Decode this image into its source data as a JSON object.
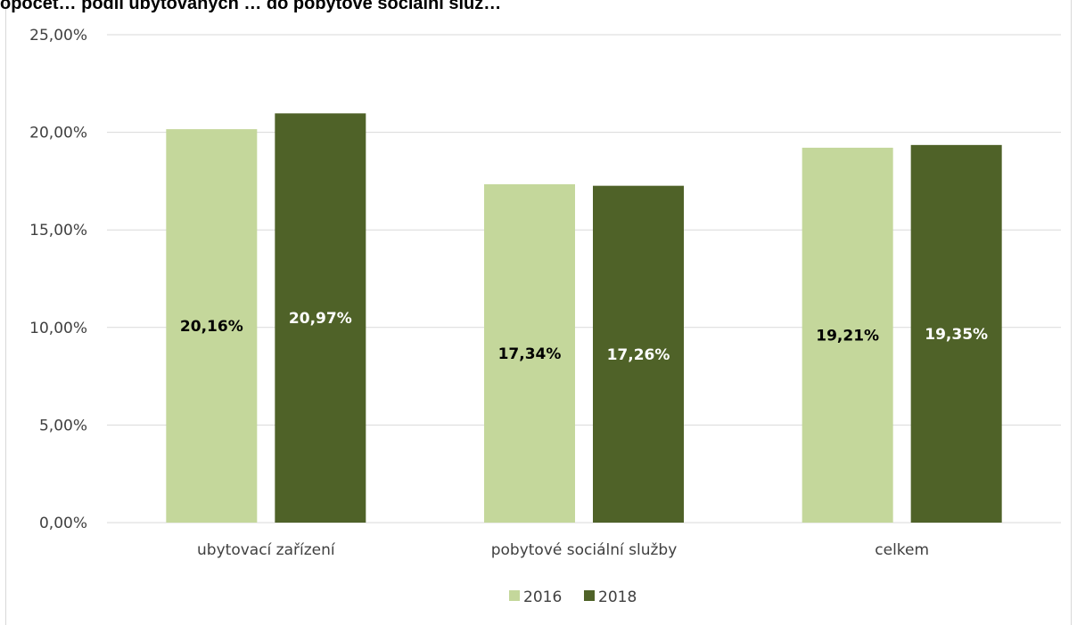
{
  "chart_data": {
    "type": "bar",
    "title": "opočet… podíl ubytovaných … do pobytové sociální služ…",
    "categories": [
      "ubytovací zařízení",
      "pobytové sociální služby",
      "celkem"
    ],
    "series": [
      {
        "name": "2016",
        "values": [
          20.16,
          17.34,
          19.21
        ],
        "labels": [
          "20,16%",
          "17,34%",
          "19,21%"
        ],
        "color": "#c4d79b",
        "label_color": "#000000"
      },
      {
        "name": "2018",
        "values": [
          20.97,
          17.26,
          19.35
        ],
        "labels": [
          "20,97%",
          "17,26%",
          "19,35%"
        ],
        "color": "#4f6228",
        "label_color": "#ffffff"
      }
    ],
    "ylim": [
      0,
      25
    ],
    "yticks": [
      0,
      5,
      10,
      15,
      20,
      25
    ],
    "ytick_labels": [
      "0,00%",
      "5,00%",
      "10,00%",
      "15,00%",
      "20,00%",
      "25,00%"
    ],
    "xlabel": "",
    "ylabel": "",
    "grid": true,
    "legend": "bottom",
    "colors": {
      "gridline": "#d9d9d9",
      "axis_text": "#404040"
    }
  }
}
